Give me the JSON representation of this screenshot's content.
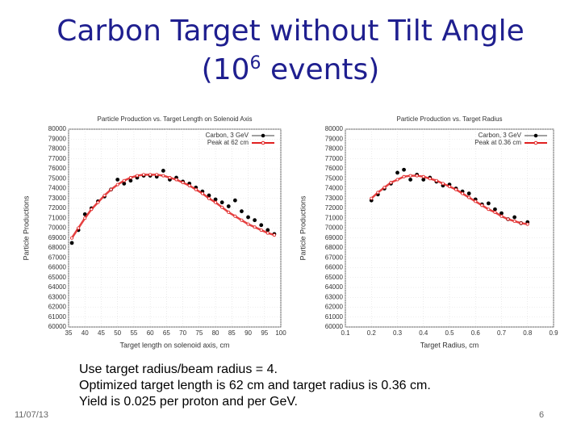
{
  "slide": {
    "title_line1": "Carbon Target without Tilt Angle",
    "title_base": "(10",
    "title_sup": "6",
    "title_rest": "events)",
    "body": [
      "Use target radius/beam radius = 4.",
      "Optimized target length is 62 cm and target radius is 0.36 cm.",
      "Yield is 0.025 per proton and per GeV."
    ],
    "date": "11/07/13",
    "page": "6"
  },
  "chart_data": [
    {
      "type": "scatter",
      "title": "Particle Production vs. Target Length on Solenoid Axis",
      "xlabel": "Target length on solenoid axis, cm",
      "ylabel": "Particle Productions",
      "xlim": [
        35,
        100
      ],
      "xticks": [
        35,
        40,
        45,
        50,
        55,
        60,
        65,
        70,
        75,
        80,
        85,
        90,
        95,
        100
      ],
      "ylim": [
        60000,
        80000
      ],
      "yticks": [
        60000,
        61000,
        62000,
        63000,
        64000,
        65000,
        66000,
        67000,
        68000,
        69000,
        70000,
        71000,
        72000,
        73000,
        74000,
        75000,
        76000,
        77000,
        78000,
        79000,
        80000
      ],
      "grid": true,
      "legend": "top-right",
      "x": [
        36,
        38,
        40,
        42,
        44,
        46,
        48,
        50,
        52,
        54,
        56,
        58,
        60,
        62,
        64,
        66,
        68,
        70,
        72,
        74,
        76,
        78,
        80,
        82,
        84,
        86,
        88,
        90,
        92,
        94,
        96,
        98
      ],
      "series": [
        {
          "name": "Carbon, 3 GeV",
          "color": "#000000",
          "line": false,
          "values": [
            68500,
            69800,
            71400,
            72000,
            72700,
            73200,
            73900,
            74900,
            74500,
            74800,
            75100,
            75300,
            75300,
            75200,
            75800,
            74900,
            75100,
            74700,
            74500,
            74100,
            73700,
            73300,
            72900,
            72600,
            72200,
            72800,
            71700,
            71100,
            70800,
            70300,
            69800,
            69400
          ]
        },
        {
          "name": "Peak at 62 cm",
          "color": "#e02020",
          "line": true,
          "values": [
            69000,
            70000,
            71000,
            71900,
            72600,
            73300,
            73900,
            74400,
            74800,
            75100,
            75300,
            75400,
            75400,
            75400,
            75300,
            75100,
            74900,
            74600,
            74300,
            73900,
            73500,
            73000,
            72600,
            72100,
            71600,
            71200,
            70800,
            70400,
            70100,
            69800,
            69500,
            69300
          ]
        }
      ]
    },
    {
      "type": "scatter",
      "title": "Particle Production vs. Target Radius",
      "xlabel": "Target Radius, cm",
      "ylabel": "Particle Productions",
      "xlim": [
        0.1,
        0.9
      ],
      "xticks": [
        0.1,
        0.2,
        0.3,
        0.4,
        0.5,
        0.6,
        0.7,
        0.8,
        0.9
      ],
      "ylim": [
        60000,
        80000
      ],
      "yticks": [
        60000,
        61000,
        62000,
        63000,
        64000,
        65000,
        66000,
        67000,
        68000,
        69000,
        70000,
        71000,
        72000,
        73000,
        74000,
        75000,
        76000,
        77000,
        78000,
        79000,
        80000
      ],
      "grid": true,
      "legend": "top-right",
      "x": [
        0.2,
        0.225,
        0.25,
        0.275,
        0.3,
        0.325,
        0.35,
        0.375,
        0.4,
        0.425,
        0.45,
        0.475,
        0.5,
        0.525,
        0.55,
        0.575,
        0.6,
        0.625,
        0.65,
        0.675,
        0.7,
        0.725,
        0.75,
        0.775,
        0.8
      ],
      "series": [
        {
          "name": "Carbon, 3 GeV",
          "color": "#000000",
          "line": false,
          "values": [
            72800,
            73400,
            74000,
            74500,
            75600,
            75900,
            74900,
            75400,
            74900,
            75100,
            74700,
            74300,
            74400,
            74000,
            73700,
            73500,
            72900,
            72400,
            72500,
            71900,
            71500,
            70900,
            71100,
            70500,
            70600
          ]
        },
        {
          "name": "Peak at 0.36 cm",
          "color": "#e02020",
          "line": true,
          "values": [
            73000,
            73600,
            74100,
            74600,
            74900,
            75200,
            75300,
            75300,
            75200,
            75000,
            74800,
            74500,
            74200,
            73900,
            73500,
            73100,
            72700,
            72300,
            71900,
            71600,
            71200,
            70900,
            70700,
            70500,
            70400
          ]
        }
      ]
    }
  ]
}
